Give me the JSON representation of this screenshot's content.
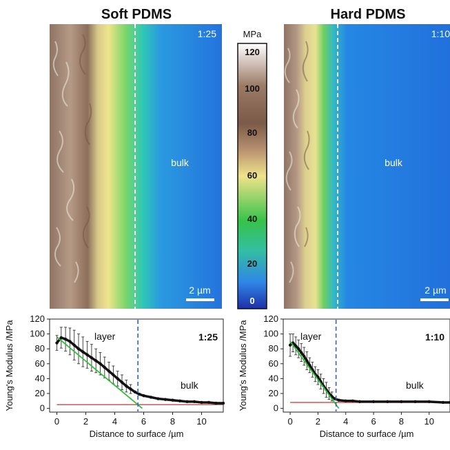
{
  "figure": {
    "left_panel": {
      "title": "Soft PDMS",
      "ratio_label": "1:25",
      "bulk_label": "bulk",
      "scalebar_label": "2 µm"
    },
    "right_panel": {
      "title": "Hard PDMS",
      "ratio_label": "1:10",
      "bulk_label": "bulk",
      "scalebar_label": "2 µm"
    },
    "colorbar": {
      "unit": "MPa",
      "ticks": [
        "120",
        "100",
        "80",
        "60",
        "40",
        "20",
        "0"
      ],
      "colors": [
        "#ffffff",
        "#9b7a66",
        "#7a5a48",
        "#efe38a",
        "#36c24a",
        "#2f86e6",
        "#1e2fa8"
      ]
    }
  },
  "chart_data": [
    {
      "type": "line",
      "xlabel": "Distance to surface /µm",
      "ylabel": "Young's Modulus /MPa",
      "xlim": [
        -0.5,
        11.5
      ],
      "ylim": [
        -5,
        120
      ],
      "x_ticks": [
        "0",
        "2",
        "4",
        "6",
        "8",
        "10"
      ],
      "y_ticks": [
        "0",
        "20",
        "40",
        "60",
        "80",
        "100",
        "120"
      ],
      "ratio_label": "1:25",
      "annotations": {
        "layer": "layer",
        "bulk": "bulk"
      },
      "boundary_x": 5.6,
      "series": [
        {
          "style": "data",
          "x": [
            0.0,
            0.3,
            0.6,
            0.9,
            1.2,
            1.5,
            1.8,
            2.1,
            2.4,
            2.7,
            3.0,
            3.3,
            3.6,
            3.9,
            4.2,
            4.5,
            4.8,
            5.1,
            5.4,
            5.7,
            6.0,
            6.5,
            7.0,
            7.5,
            8.0,
            8.5,
            9.0,
            9.5,
            10.0,
            10.5,
            11.0,
            11.5
          ],
          "y": [
            88,
            95,
            93,
            90,
            85,
            80,
            76,
            72,
            68,
            64,
            60,
            55,
            50,
            45,
            40,
            35,
            30,
            26,
            22,
            19,
            17,
            15,
            13,
            12,
            11,
            10,
            9,
            9,
            8,
            8,
            7,
            7
          ],
          "err": [
            10,
            14,
            16,
            18,
            20,
            20,
            20,
            18,
            18,
            16,
            15,
            14,
            12,
            12,
            10,
            10,
            8,
            6,
            0,
            0,
            0,
            0,
            0,
            0,
            0,
            0,
            0,
            0,
            0,
            0,
            0,
            0
          ]
        },
        {
          "style": "fit",
          "x": [
            0.0,
            5.9
          ],
          "y": [
            96,
            0
          ]
        },
        {
          "style": "baseline",
          "x": [
            0.0,
            11.5
          ],
          "y": [
            5,
            5
          ]
        }
      ]
    },
    {
      "type": "line",
      "xlabel": "Distance to surface /µm",
      "ylabel": "Young's Modulus /MPa",
      "xlim": [
        -0.5,
        11.5
      ],
      "ylim": [
        -5,
        120
      ],
      "x_ticks": [
        "0",
        "2",
        "4",
        "6",
        "8",
        "10"
      ],
      "y_ticks": [
        "0",
        "20",
        "40",
        "60",
        "80",
        "100",
        "120"
      ],
      "ratio_label": "1:10",
      "annotations": {
        "layer": "layer",
        "bulk": "bulk"
      },
      "boundary_x": 3.3,
      "series": [
        {
          "style": "data",
          "x": [
            0.0,
            0.2,
            0.4,
            0.6,
            0.8,
            1.0,
            1.2,
            1.4,
            1.6,
            1.8,
            2.0,
            2.2,
            2.4,
            2.6,
            2.8,
            3.0,
            3.2,
            3.5,
            4.0,
            4.5,
            5.0,
            6.0,
            7.0,
            8.0,
            9.0,
            10.0,
            11.0,
            11.5
          ],
          "y": [
            85,
            88,
            84,
            80,
            75,
            70,
            64,
            58,
            52,
            46,
            42,
            36,
            30,
            25,
            20,
            16,
            13,
            11,
            10,
            10,
            9,
            9,
            9,
            9,
            9,
            9,
            8,
            8
          ],
          "err": [
            15,
            12,
            12,
            12,
            12,
            12,
            12,
            10,
            10,
            10,
            10,
            10,
            10,
            10,
            8,
            6,
            0,
            0,
            0,
            0,
            0,
            0,
            0,
            0,
            0,
            0,
            0,
            0
          ]
        },
        {
          "style": "fit",
          "x": [
            0.0,
            3.5
          ],
          "y": [
            90,
            0
          ]
        },
        {
          "style": "baseline",
          "x": [
            0.0,
            11.5
          ],
          "y": [
            8,
            8
          ]
        }
      ]
    }
  ]
}
